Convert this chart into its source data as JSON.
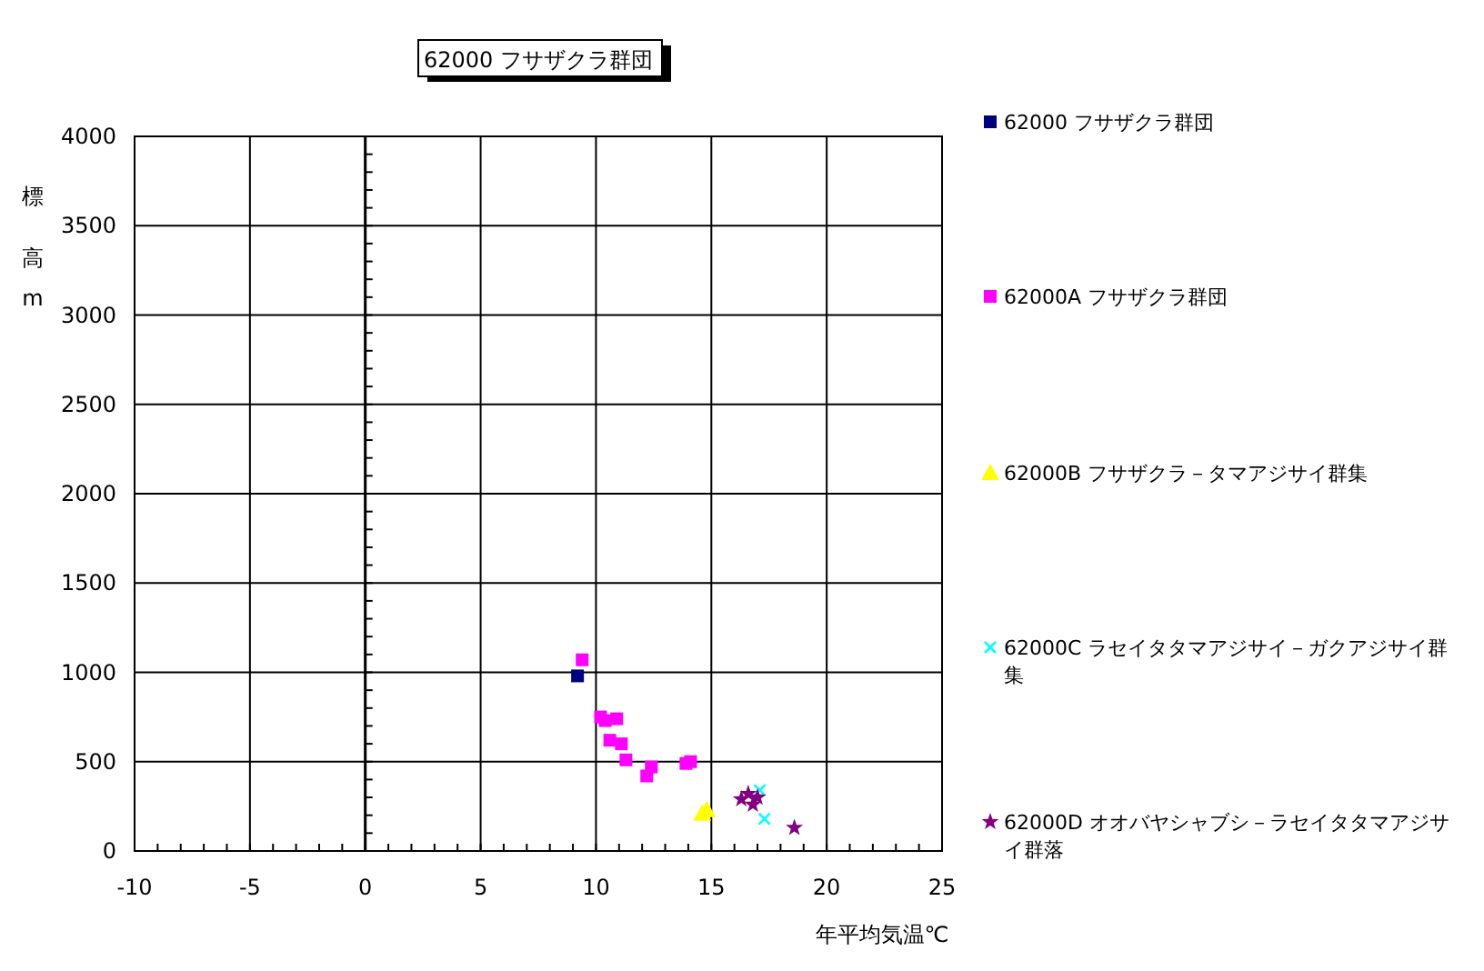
{
  "chart_data": {
    "type": "scatter",
    "title": "62000 フサザクラ群団",
    "xlabel": "年平均気温℃",
    "ylabel": "標高m",
    "xlim": [
      -10,
      25
    ],
    "xticks": [
      -10,
      -5,
      0,
      5,
      10,
      15,
      20,
      25
    ],
    "ylim": [
      0,
      4000
    ],
    "yticks": [
      0,
      500,
      1000,
      1500,
      2000,
      2500,
      3000,
      3500,
      4000
    ],
    "grid": true,
    "legend": "right",
    "series": [
      {
        "name": "62000 フサザクラ群団",
        "color": "#000080",
        "marker": "square",
        "x": [
          9.2
        ],
        "values": [
          980
        ]
      },
      {
        "name": "62000A フサザクラ群団",
        "color": "#ff00ff",
        "marker": "square",
        "x": [
          9.4,
          10.2,
          10.4,
          10.9,
          10.6,
          11.1,
          11.3,
          12.2,
          12.4,
          13.9,
          14.1
        ],
        "values": [
          1070,
          750,
          730,
          740,
          620,
          600,
          510,
          420,
          470,
          490,
          500
        ]
      },
      {
        "name": "62000B フサザクラ－タマアジサイ群集",
        "color": "#ffff00",
        "marker": "triangle",
        "x": [
          14.6,
          14.8
        ],
        "values": [
          210,
          230
        ]
      },
      {
        "name": "62000C ラセイタタマアジサイ－ガクアジサイ群集",
        "color": "#00ffff",
        "marker": "cross",
        "x": [
          17.1,
          17.3
        ],
        "values": [
          340,
          180
        ]
      },
      {
        "name": "62000D オオバヤシャブシ－ラセイタタマアジサイ群落",
        "color": "#800080",
        "marker": "star",
        "x": [
          16.3,
          16.6,
          16.8,
          17.0,
          18.6
        ],
        "values": [
          290,
          320,
          260,
          300,
          130
        ]
      }
    ]
  }
}
